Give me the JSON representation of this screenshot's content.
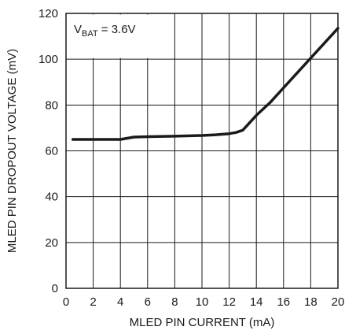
{
  "chart_data": {
    "type": "line",
    "xlabel": "MLED PIN CURRENT (mA)",
    "ylabel": "MLED PIN DROPOUT VOLTAGE (mV)",
    "xlim": [
      0,
      20
    ],
    "ylim": [
      0,
      120
    ],
    "x_ticks": [
      "0",
      "2",
      "4",
      "6",
      "8",
      "10",
      "12",
      "14",
      "16",
      "18",
      "20"
    ],
    "y_ticks": [
      "0",
      "20",
      "40",
      "60",
      "80",
      "100",
      "120"
    ],
    "grid": true,
    "annotation": {
      "main": "V",
      "sub": "BAT",
      "rest": " = 3.6V"
    },
    "series": [
      {
        "x": [
          0.5,
          2,
          4,
          5,
          6,
          8,
          10,
          11,
          12,
          12.5,
          13,
          14,
          15,
          16,
          17,
          18,
          19,
          20
        ],
        "y": [
          65,
          65,
          65,
          66,
          66.2,
          66.4,
          66.7,
          67,
          67.5,
          68,
          69,
          75.5,
          81,
          87.5,
          94,
          100.5,
          107,
          113.5
        ]
      }
    ],
    "line_color": "#1a1a1a"
  }
}
